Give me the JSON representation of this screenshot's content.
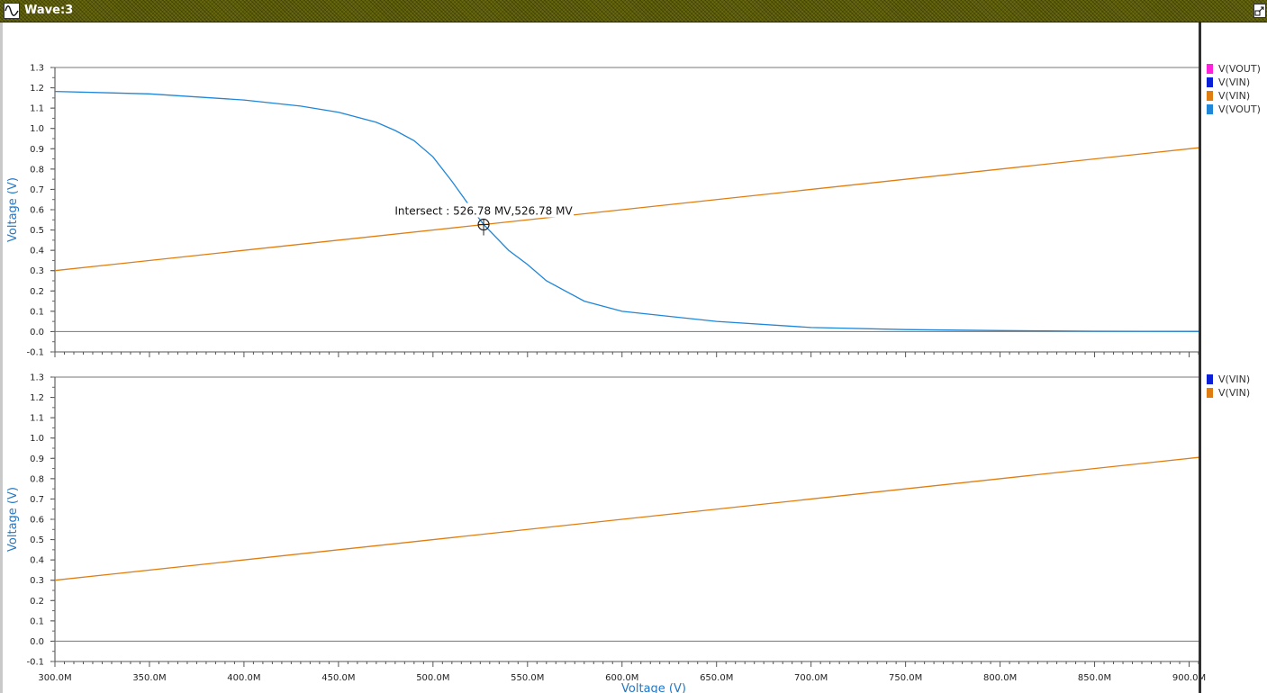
{
  "window": {
    "title": "Wave:3",
    "icon": "waveform-icon",
    "controls": [
      "maximize-icon"
    ]
  },
  "colors": {
    "vout_magenta": "#ff22dd",
    "vin_blue": "#0b1fd6",
    "vin_orange": "#e07d10",
    "vout_lightblue": "#1f86d8",
    "titlebar": "#5c5c08",
    "axis_label": "#1f78c8"
  },
  "legend_top": [
    {
      "label": "V(VOUT)",
      "color": "#ff22dd"
    },
    {
      "label": "V(VIN)",
      "color": "#0b1fd6"
    },
    {
      "label": "V(VIN)",
      "color": "#e07d10"
    },
    {
      "label": "V(VOUT)",
      "color": "#1f86d8"
    }
  ],
  "legend_bottom": [
    {
      "label": "V(VIN)",
      "color": "#0b1fd6"
    },
    {
      "label": "V(VIN)",
      "color": "#e07d10"
    }
  ],
  "annotation": {
    "text": "Intersect : 526.78 MV,526.78 MV",
    "x": 526.78,
    "y": 0.52678
  },
  "chart_data": [
    {
      "type": "line",
      "xlabel": "",
      "ylabel": "Voltage (V)",
      "xlim": [
        300,
        905
      ],
      "ylim": [
        -0.1,
        1.3
      ],
      "yticks": [
        "-0.1",
        "0.0",
        "0.1",
        "0.2",
        "0.3",
        "0.4",
        "0.5",
        "0.6",
        "0.7",
        "0.8",
        "0.9",
        "1.0",
        "1.1",
        "1.2",
        "1.3"
      ],
      "grid": false,
      "legend": "right",
      "series": [
        {
          "name": "V(VIN)",
          "color": "#e07d10",
          "x": [
            300,
            905
          ],
          "y": [
            0.3,
            0.905
          ]
        },
        {
          "name": "V(VOUT)",
          "color": "#1f86d8",
          "x": [
            300,
            350,
            400,
            430,
            450,
            470,
            480,
            490,
            500,
            510,
            520,
            526.78,
            540,
            550,
            560,
            580,
            600,
            650,
            700,
            750,
            800,
            850,
            905
          ],
          "y": [
            1.182,
            1.17,
            1.14,
            1.11,
            1.08,
            1.03,
            0.99,
            0.94,
            0.86,
            0.74,
            0.61,
            0.527,
            0.4,
            0.33,
            0.25,
            0.15,
            0.1,
            0.05,
            0.02,
            0.01,
            0.005,
            0.002,
            0.001
          ]
        }
      ]
    },
    {
      "type": "line",
      "xlabel": "Voltage (V)",
      "ylabel": "Voltage (V)",
      "xlim": [
        300,
        905
      ],
      "ylim": [
        -0.1,
        1.3
      ],
      "xticks": [
        "300.0M",
        "350.0M",
        "400.0M",
        "450.0M",
        "500.0M",
        "550.0M",
        "600.0M",
        "650.0M",
        "700.0M",
        "750.0M",
        "800.0M",
        "850.0M",
        "900.0M"
      ],
      "yticks": [
        "-0.1",
        "0.0",
        "0.1",
        "0.2",
        "0.3",
        "0.4",
        "0.5",
        "0.6",
        "0.7",
        "0.8",
        "0.9",
        "1.0",
        "1.1",
        "1.2",
        "1.3"
      ],
      "grid": false,
      "legend": "right",
      "series": [
        {
          "name": "V(VIN)",
          "color": "#e07d10",
          "x": [
            300,
            905
          ],
          "y": [
            0.3,
            0.905
          ]
        }
      ]
    }
  ]
}
